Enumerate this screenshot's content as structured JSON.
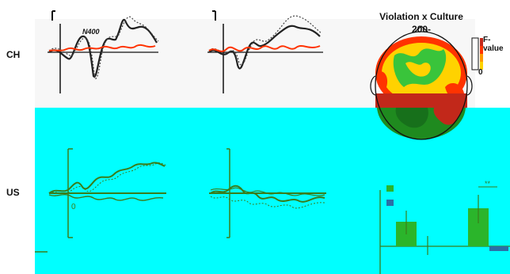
{
  "rows": {
    "ch_label": "CH",
    "us_label": "US"
  },
  "scalp": {
    "title_line1": "Violation x Culture",
    "title_line2": "200-",
    "colorbar_label": "F-value",
    "colorbar_min": "0"
  },
  "erp": {
    "n400_label": "N400"
  },
  "bar_panel": {
    "significance": "**"
  },
  "colors": {
    "cyan_background": "#00ffff",
    "erp_black": "#222222",
    "erp_red": "#ff3300",
    "erp_green": "#3a7d1a",
    "bar_green": "#2bb52b",
    "bar_blue": "#2a6fa6"
  }
}
